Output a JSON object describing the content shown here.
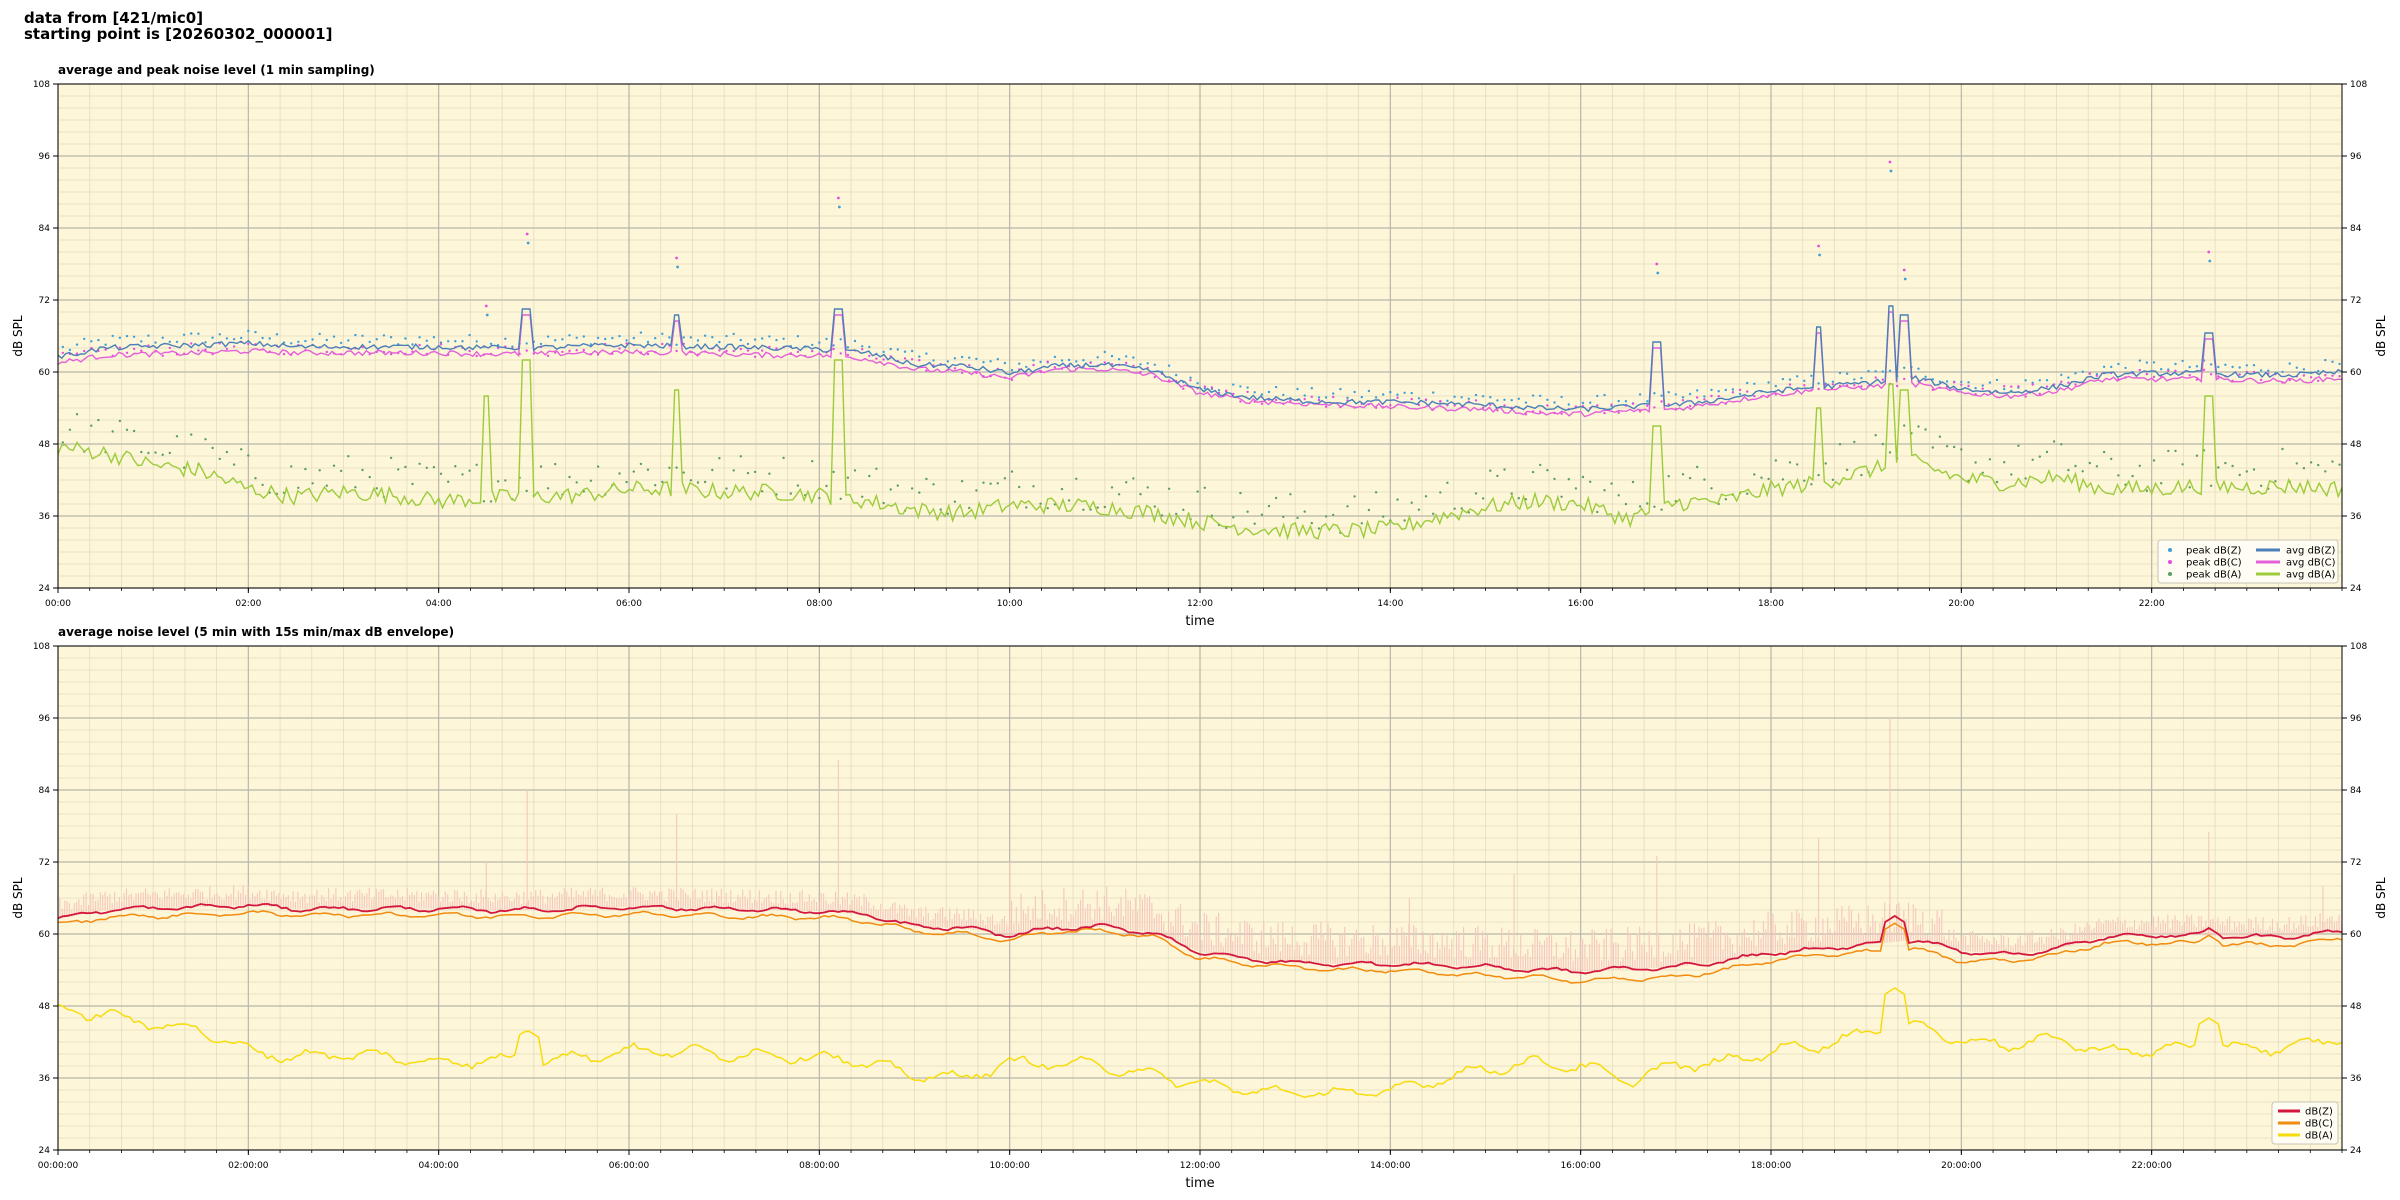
{
  "header": {
    "line1": "data from [421/mic0]",
    "line2": "starting point is [20260302_000001]"
  },
  "colors": {
    "plot_bg": "#fdf6d8",
    "peak_z": "#3f9fd6",
    "peak_c": "#e84de0",
    "peak_a": "#5a9e63",
    "avg_z": "#4a7fb8",
    "avg_c": "#e45fd9",
    "avg_a": "#9ccc3c",
    "b_z": "#d4173f",
    "b_c": "#f28c0f",
    "b_a": "#f7dc0d",
    "envelope": "#f5c7bf"
  },
  "chart_data": [
    {
      "type": "line",
      "title": "average and peak noise level (1 min sampling)",
      "xlabel": "time",
      "ylabel": "dB SPL",
      "xlim_hours": [
        0,
        24
      ],
      "ylim": [
        24,
        108
      ],
      "yticks": [
        24,
        36,
        48,
        60,
        72,
        84,
        96,
        108
      ],
      "ytick_labels": [
        "24",
        "36",
        "48",
        "60",
        "72",
        "84",
        "96",
        "108"
      ],
      "xtick_labels": [
        "00:00",
        "02:00",
        "04:00",
        "06:00",
        "08:00",
        "10:00",
        "12:00",
        "14:00",
        "16:00",
        "18:00",
        "20:00",
        "22:00"
      ],
      "grid": true,
      "legend_position": "bottom-right",
      "legend": [
        "peak dB(Z)",
        "peak dB(C)",
        "peak dB(A)",
        "avg dB(Z)",
        "avg dB(C)",
        "avg dB(A)"
      ],
      "x_hours": [
        0,
        0.5,
        1,
        1.5,
        2,
        2.5,
        3,
        3.5,
        4,
        4.5,
        5,
        5.5,
        6,
        6.5,
        7,
        7.5,
        8,
        8.5,
        9,
        9.5,
        10,
        10.5,
        11,
        11.5,
        12,
        12.5,
        13,
        13.5,
        14,
        14.5,
        15,
        15.5,
        16,
        16.5,
        17,
        17.5,
        18,
        18.5,
        19,
        19.5,
        20,
        20.5,
        21,
        21.5,
        22,
        22.5,
        23,
        23.5,
        24
      ],
      "series": [
        {
          "name": "avg dB(Z)",
          "values": [
            62.5,
            64,
            64.3,
            64.5,
            64.8,
            64.2,
            64.2,
            64.2,
            64.2,
            64,
            64,
            64.3,
            64.5,
            64.3,
            64.2,
            64,
            63.8,
            63.2,
            61.2,
            61,
            59.8,
            61,
            61.2,
            60.2,
            57,
            55.8,
            55.2,
            55,
            55,
            54.8,
            54.5,
            54,
            53.8,
            54.2,
            54.5,
            55.5,
            56.8,
            57.5,
            58.2,
            59,
            57.2,
            56.5,
            57.5,
            59.5,
            59.8,
            59.8,
            59.5,
            59.5,
            60
          ]
        },
        {
          "name": "avg dB(C)",
          "values": [
            61.5,
            62.8,
            63,
            63.2,
            63.5,
            63.2,
            63.2,
            63.2,
            63.2,
            63,
            63,
            63.2,
            63.3,
            63.2,
            63,
            62.8,
            62.8,
            62.2,
            60.5,
            60,
            59,
            60.5,
            60.5,
            59.5,
            56.5,
            55.2,
            54.8,
            54.5,
            54.2,
            54,
            53.8,
            53.2,
            53,
            53.5,
            53.8,
            55,
            56.2,
            57,
            57.5,
            58,
            56.5,
            56,
            56.8,
            58.8,
            58.8,
            58.8,
            58.6,
            58.5,
            59
          ]
        },
        {
          "name": "avg dB(A)",
          "values": [
            47.5,
            46.5,
            44.5,
            43.5,
            40.5,
            39.2,
            40,
            39.5,
            38.5,
            39,
            39.2,
            39.5,
            40.5,
            40.5,
            40,
            40,
            39.5,
            38.5,
            37,
            36.5,
            37.8,
            37.8,
            37.5,
            36.5,
            35,
            34,
            33.5,
            33.5,
            33.8,
            35.8,
            37.5,
            38.5,
            38,
            35.5,
            38.2,
            38.5,
            40.5,
            41.5,
            43.5,
            45,
            42.2,
            41.5,
            42.5,
            40.5,
            40.5,
            41,
            40.8,
            41,
            40.5
          ]
        }
      ],
      "spikes": [
        {
          "x_hours": 4.5,
          "avg_z": 64,
          "avg_a": 56,
          "peak": 71
        },
        {
          "x_hours": 4.93,
          "avg_z": 70.5,
          "avg_a": 62,
          "peak": 83
        },
        {
          "x_hours": 6.5,
          "avg_z": 69.5,
          "avg_a": 57,
          "peak": 79
        },
        {
          "x_hours": 8.2,
          "avg_z": 70.5,
          "avg_a": 62,
          "peak": 89
        },
        {
          "x_hours": 16.8,
          "avg_z": 65,
          "avg_a": 51,
          "peak": 78
        },
        {
          "x_hours": 18.5,
          "avg_z": 67.5,
          "avg_a": 54,
          "peak": 81
        },
        {
          "x_hours": 19.25,
          "avg_z": 71,
          "avg_a": 58,
          "peak": 95
        },
        {
          "x_hours": 19.4,
          "avg_z": 69.5,
          "avg_a": 57,
          "peak": 77
        },
        {
          "x_hours": 22.6,
          "avg_z": 66.5,
          "avg_a": 56,
          "peak": 80
        }
      ]
    },
    {
      "type": "line",
      "title": "average noise level (5 min with 15s min/max dB envelope)",
      "xlabel": "time",
      "ylabel": "dB SPL",
      "xlim_hours": [
        0,
        24
      ],
      "ylim": [
        24,
        108
      ],
      "yticks": [
        24,
        36,
        48,
        60,
        72,
        84,
        96,
        108
      ],
      "ytick_labels": [
        "24",
        "36",
        "48",
        "60",
        "72",
        "84",
        "96",
        "108"
      ],
      "xtick_labels": [
        "00:00:00",
        "02:00:00",
        "04:00:00",
        "06:00:00",
        "08:00:00",
        "10:00:00",
        "12:00:00",
        "14:00:00",
        "16:00:00",
        "18:00:00",
        "20:00:00",
        "22:00:00"
      ],
      "grid": true,
      "legend_position": "bottom-right",
      "legend": [
        "dB(Z)",
        "dB(C)",
        "dB(A)"
      ],
      "x_hours": [
        0,
        0.5,
        1,
        1.5,
        2,
        2.5,
        3,
        3.5,
        4,
        4.5,
        5,
        5.5,
        6,
        6.5,
        7,
        7.5,
        8,
        8.5,
        9,
        9.5,
        10,
        10.5,
        11,
        11.5,
        12,
        12.5,
        13,
        13.5,
        14,
        14.5,
        15,
        15.5,
        16,
        16.5,
        17,
        17.5,
        18,
        18.5,
        19,
        19.5,
        20,
        20.5,
        21,
        21.5,
        22,
        22.5,
        23,
        23.5,
        24
      ],
      "series": [
        {
          "name": "dB(Z)",
          "values": [
            62.5,
            64,
            64.3,
            64.5,
            64.8,
            64.2,
            64.2,
            64.2,
            64.2,
            64,
            64,
            64.3,
            64.5,
            64.3,
            64.2,
            64,
            63.8,
            63.2,
            61.2,
            61,
            59.8,
            61,
            61.2,
            60.2,
            57,
            55.8,
            55.2,
            55,
            55,
            54.8,
            54.5,
            54,
            53.8,
            54.2,
            54.5,
            55.5,
            56.8,
            57.5,
            58.2,
            59,
            57.2,
            56.5,
            57.5,
            59.5,
            59.8,
            59.8,
            59.5,
            59.5,
            60.5
          ]
        },
        {
          "name": "dB(C)",
          "values": [
            61.5,
            62.8,
            63,
            63.2,
            63.5,
            63.2,
            63.2,
            63.2,
            63.2,
            63,
            63,
            63.2,
            63.3,
            63.2,
            63,
            62.8,
            62.8,
            62.2,
            60.5,
            60,
            59,
            60.5,
            60.5,
            59.5,
            56,
            55,
            54.5,
            54,
            54,
            53.5,
            53,
            52.8,
            52.2,
            52.5,
            52.8,
            54,
            55.5,
            56.5,
            57,
            57.5,
            55.5,
            55.5,
            56.5,
            58.5,
            58.5,
            58.5,
            58.2,
            58.2,
            59.5
          ]
        },
        {
          "name": "dB(A)",
          "values": [
            47.5,
            46.5,
            45,
            44,
            40.5,
            39.5,
            40,
            39.5,
            38.5,
            39,
            39,
            39.5,
            40.5,
            40.5,
            40,
            39.8,
            39.5,
            38.5,
            36.5,
            36,
            38.5,
            38.5,
            38,
            36.5,
            35,
            34,
            33.5,
            33.5,
            33.8,
            35.8,
            37.5,
            38.5,
            38,
            35.5,
            38.2,
            38.5,
            40.5,
            41.5,
            43.5,
            45,
            42.2,
            41.5,
            42.5,
            40.5,
            40.5,
            41.5,
            41,
            41,
            43
          ]
        }
      ],
      "envelope_max": [
        {
          "x_hours": 4.5,
          "value": 72
        },
        {
          "x_hours": 4.93,
          "value": 84
        },
        {
          "x_hours": 6.5,
          "value": 80
        },
        {
          "x_hours": 8.2,
          "value": 89
        },
        {
          "x_hours": 10,
          "value": 72
        },
        {
          "x_hours": 14.2,
          "value": 66
        },
        {
          "x_hours": 15.3,
          "value": 70
        },
        {
          "x_hours": 16.8,
          "value": 73
        },
        {
          "x_hours": 18.5,
          "value": 76
        },
        {
          "x_hours": 19.25,
          "value": 96
        },
        {
          "x_hours": 22.6,
          "value": 77
        },
        {
          "x_hours": 23.8,
          "value": 68
        }
      ],
      "spikes": [
        {
          "x_hours": 4.93,
          "z": 62,
          "a": 44
        },
        {
          "x_hours": 19.3,
          "z": 63,
          "a": 51
        },
        {
          "x_hours": 22.6,
          "z": 61,
          "a": 46
        }
      ]
    }
  ]
}
